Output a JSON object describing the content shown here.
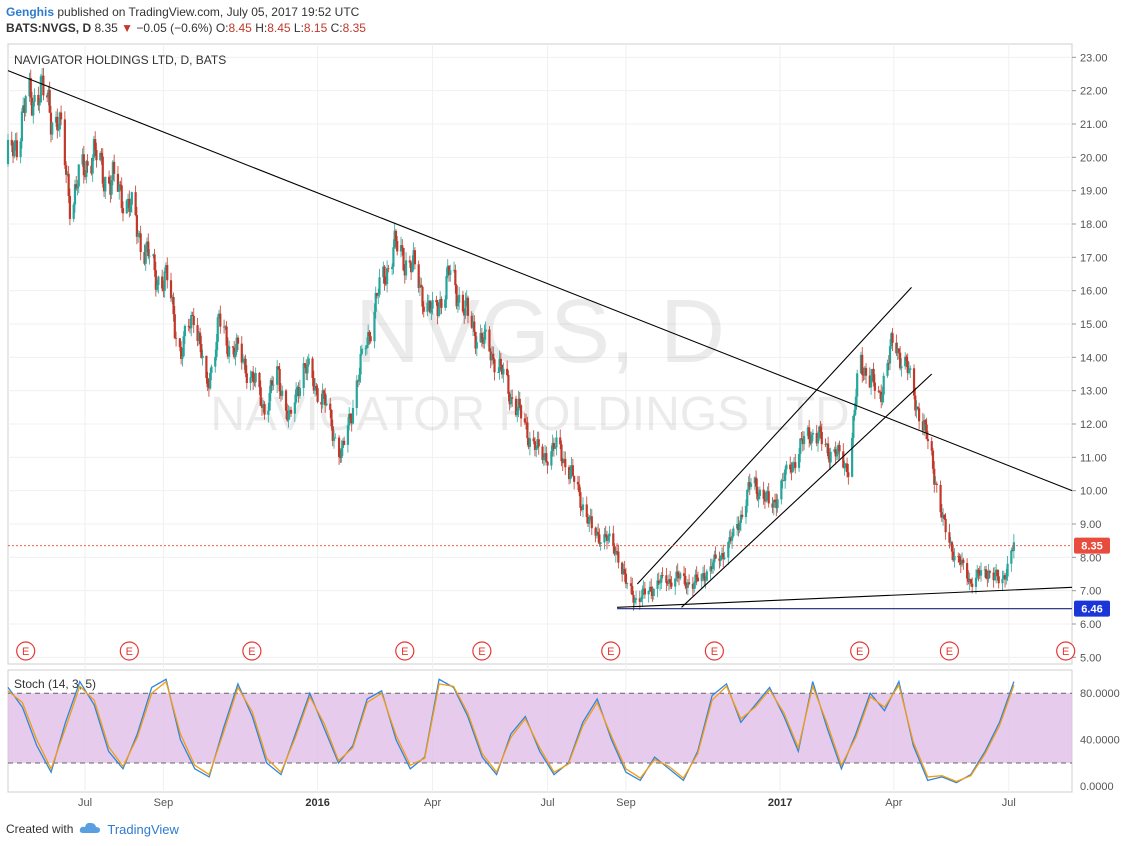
{
  "header": {
    "author": "Genghis",
    "published_text": "published on TradingView.com, July 05, 2017 19:52 UTC",
    "symbol": "BATS:NVGS, D",
    "last": "8.35",
    "change": "−0.05 (−0.6%)",
    "o_label": "O:",
    "o": "8.45",
    "h_label": "H:",
    "h": "8.45",
    "l_label": "L:",
    "l": "8.15",
    "c_label": "C:",
    "c": "8.35"
  },
  "footer": {
    "created_with": "Created with",
    "brand": "TradingView"
  },
  "colors": {
    "up": "#26a69a",
    "down": "#c0392b",
    "trendline": "#000000",
    "support": "#1a237e",
    "last_price": "#e74c3c",
    "stoch_k": "#2e86de",
    "stoch_d": "#f39c12",
    "stoch_band": "#e1bee7",
    "earnings": "#e53935"
  },
  "chart_data": [
    {
      "type": "candlestick",
      "title": "NAVIGATOR HOLDINGS LTD, D, BATS",
      "watermark_symbol": "NVGS, D",
      "watermark_name": "NAVIGATOR HOLDINGS LTD",
      "ylim": [
        4.8,
        23.4
      ],
      "y_ticks": [
        "23.00",
        "22.00",
        "21.00",
        "20.00",
        "19.00",
        "18.00",
        "17.00",
        "16.00",
        "15.00",
        "14.00",
        "13.00",
        "12.00",
        "11.00",
        "10.00",
        "9.00",
        "8.00",
        "7.00",
        "6.00",
        "5.00"
      ],
      "x_range": [
        "2015-05-01",
        "2017-08-20"
      ],
      "x_ticks": [
        {
          "date": "2015-07-01",
          "label": "Jul",
          "bold": false
        },
        {
          "date": "2015-09-01",
          "label": "Sep",
          "bold": false
        },
        {
          "date": "2016-01-01",
          "label": "2016",
          "bold": true
        },
        {
          "date": "2016-04-01",
          "label": "Apr",
          "bold": false
        },
        {
          "date": "2016-07-01",
          "label": "Jul",
          "bold": false
        },
        {
          "date": "2016-09-01",
          "label": "Sep",
          "bold": false
        },
        {
          "date": "2017-01-01",
          "label": "2017",
          "bold": true
        },
        {
          "date": "2017-04-01",
          "label": "Apr",
          "bold": false
        },
        {
          "date": "2017-07-01",
          "label": "Jul",
          "bold": false
        }
      ],
      "price_path": [
        [
          "2015-05-01",
          19.8
        ],
        [
          "2015-05-15",
          21.5
        ],
        [
          "2015-05-25",
          22.1
        ],
        [
          "2015-06-10",
          21.0
        ],
        [
          "2015-06-20",
          18.6
        ],
        [
          "2015-07-05",
          20.2
        ],
        [
          "2015-07-20",
          19.3
        ],
        [
          "2015-08-01",
          18.9
        ],
        [
          "2015-08-15",
          17.5
        ],
        [
          "2015-08-25",
          16.5
        ],
        [
          "2015-09-05",
          16.2
        ],
        [
          "2015-09-15",
          14.0
        ],
        [
          "2015-09-25",
          15.5
        ],
        [
          "2015-10-05",
          13.0
        ],
        [
          "2015-10-15",
          15.0
        ],
        [
          "2015-10-25",
          14.3
        ],
        [
          "2015-11-05",
          13.8
        ],
        [
          "2015-11-20",
          12.5
        ],
        [
          "2015-12-01",
          13.5
        ],
        [
          "2015-12-10",
          12.0
        ],
        [
          "2015-12-20",
          13.8
        ],
        [
          "2016-01-05",
          12.8
        ],
        [
          "2016-01-20",
          11.0
        ],
        [
          "2016-02-01",
          13.2
        ],
        [
          "2016-02-15",
          15.5
        ],
        [
          "2016-03-01",
          17.3
        ],
        [
          "2016-03-15",
          16.8
        ],
        [
          "2016-04-01",
          15.2
        ],
        [
          "2016-04-15",
          16.5
        ],
        [
          "2016-05-01",
          15.0
        ],
        [
          "2016-05-20",
          14.0
        ],
        [
          "2016-06-10",
          12.2
        ],
        [
          "2016-06-25",
          11.0
        ],
        [
          "2016-07-10",
          11.3
        ],
        [
          "2016-07-25",
          10.0
        ],
        [
          "2016-08-05",
          8.8
        ],
        [
          "2016-08-15",
          8.6
        ],
        [
          "2016-08-25",
          8.2
        ],
        [
          "2016-09-01",
          7.2
        ],
        [
          "2016-09-10",
          6.7
        ],
        [
          "2016-09-25",
          7.2
        ],
        [
          "2016-10-10",
          7.4
        ],
        [
          "2016-10-25",
          7.2
        ],
        [
          "2016-11-10",
          7.8
        ],
        [
          "2016-11-25",
          8.6
        ],
        [
          "2016-12-10",
          10.3
        ],
        [
          "2016-12-25",
          9.5
        ],
        [
          "2017-01-10",
          10.8
        ],
        [
          "2017-01-25",
          11.8
        ],
        [
          "2017-02-10",
          11.2
        ],
        [
          "2017-02-25",
          10.7
        ],
        [
          "2017-03-05",
          14.0
        ],
        [
          "2017-03-20",
          12.8
        ],
        [
          "2017-04-01",
          14.5
        ],
        [
          "2017-04-10",
          13.8
        ],
        [
          "2017-04-20",
          12.5
        ],
        [
          "2017-05-01",
          11.0
        ],
        [
          "2017-05-10",
          9.0
        ],
        [
          "2017-05-20",
          8.0
        ],
        [
          "2017-06-01",
          7.3
        ],
        [
          "2017-06-15",
          7.6
        ],
        [
          "2017-06-25",
          7.2
        ],
        [
          "2017-07-05",
          8.35
        ]
      ],
      "trend_lines": [
        {
          "name": "long-downtrend",
          "points": [
            [
              "2015-05-01",
              22.6
            ],
            [
              "2017-08-20",
              10.0
            ]
          ]
        },
        {
          "name": "channel-upper",
          "points": [
            [
              "2016-09-10",
              7.2
            ],
            [
              "2017-04-15",
              16.1
            ]
          ]
        },
        {
          "name": "channel-lower",
          "points": [
            [
              "2016-10-15",
              6.5
            ],
            [
              "2017-05-01",
              13.5
            ]
          ]
        },
        {
          "name": "bottom-support",
          "points": [
            [
              "2016-08-25",
              6.5
            ],
            [
              "2017-08-20",
              7.1
            ]
          ]
        },
        {
          "name": "horizontal-support",
          "points": [
            [
              "2016-08-25",
              6.46
            ],
            [
              "2017-08-20",
              6.46
            ]
          ]
        }
      ],
      "price_labels": [
        {
          "value": 8.35,
          "text": "8.35",
          "kind": "last"
        },
        {
          "value": 6.46,
          "text": "6.46",
          "kind": "support"
        }
      ],
      "earnings_marker": "E",
      "earnings_dates": [
        "2015-05-15",
        "2015-08-05",
        "2015-11-10",
        "2016-03-10",
        "2016-05-10",
        "2016-08-20",
        "2016-11-10",
        "2017-03-05",
        "2017-05-15",
        "2017-08-15"
      ]
    },
    {
      "type": "line",
      "title": "Stoch (14, 3, 5)",
      "ylim": [
        -5,
        100
      ],
      "y_ticks": [
        "80.0000",
        "40.0000",
        "0.0000"
      ],
      "band": [
        20,
        80
      ],
      "series": [
        {
          "key": "k",
          "values": [
            85,
            68,
            35,
            12,
            55,
            90,
            70,
            30,
            15,
            45,
            85,
            92,
            40,
            15,
            8,
            50,
            88,
            60,
            20,
            10,
            45,
            80,
            50,
            20,
            35,
            75,
            82,
            40,
            15,
            25,
            92,
            85,
            60,
            25,
            10,
            45,
            60,
            30,
            10,
            20,
            55,
            75,
            40,
            12,
            5,
            25,
            15,
            5,
            30,
            78,
            88,
            55,
            70,
            85,
            60,
            30,
            90,
            50,
            15,
            45,
            80,
            65,
            90,
            35,
            5,
            8,
            3,
            10,
            30,
            55,
            90
          ]
        },
        {
          "key": "d",
          "values": [
            82,
            72,
            40,
            15,
            50,
            86,
            74,
            34,
            17,
            42,
            80,
            90,
            45,
            18,
            10,
            46,
            85,
            64,
            24,
            12,
            42,
            77,
            54,
            22,
            33,
            72,
            80,
            44,
            18,
            24,
            88,
            86,
            63,
            28,
            12,
            42,
            58,
            33,
            12,
            19,
            52,
            72,
            43,
            15,
            7,
            23,
            17,
            7,
            28,
            74,
            86,
            58,
            68,
            83,
            63,
            33,
            86,
            54,
            18,
            42,
            77,
            68,
            87,
            38,
            8,
            9,
            4,
            9,
            28,
            52,
            87
          ]
        }
      ]
    }
  ]
}
